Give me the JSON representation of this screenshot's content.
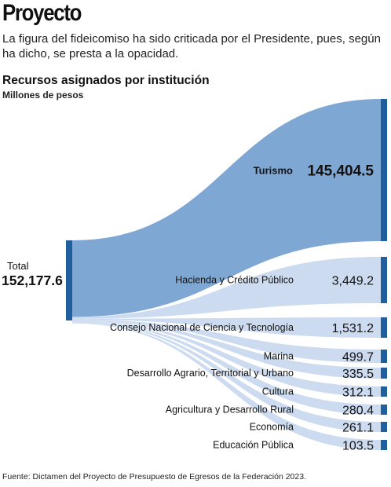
{
  "header": {
    "title": "Proyecto",
    "description": "La figura del fideicomiso ha sido criticada por el Presidente, pues, según ha dicho, se presta a la opacidad."
  },
  "footer": {
    "source": "Fuente: Dictamen del Proyecto de Presupuesto de Egresos de la Federación 2023."
  },
  "colors": {
    "node": "#1f5f9e",
    "flow_main": "#7fa7d4",
    "flow_light": "#c3d5ec",
    "text": "#111111"
  },
  "chart_data": {
    "type": "sankey",
    "title": "Recursos asignados por institución",
    "subtitle": "Millones de pesos",
    "source_node": {
      "label": "Total",
      "value_label": "152,177.6",
      "value": 152177.6
    },
    "targets": [
      {
        "name": "Turismo",
        "value": 145404.5,
        "value_label": "145,404.5"
      },
      {
        "name": "Hacienda y Crédito Público",
        "value": 3449.2,
        "value_label": "3,449.2"
      },
      {
        "name": "Consejo Nacional de Ciencia y Tecnología",
        "value": 1531.2,
        "value_label": "1,531.2"
      },
      {
        "name": "Marina",
        "value": 499.7,
        "value_label": "499.7"
      },
      {
        "name": "Desarrollo Agrario, Territorial y Urbano",
        "value": 335.5,
        "value_label": "335.5"
      },
      {
        "name": "Cultura",
        "value": 312.1,
        "value_label": "312.1"
      },
      {
        "name": "Agricultura y Desarrollo Rural",
        "value": 280.4,
        "value_label": "280.4"
      },
      {
        "name": "Economía",
        "value": 261.1,
        "value_label": "261.1"
      },
      {
        "name": "Educación Pública",
        "value": 103.5,
        "value_label": "103.5"
      }
    ]
  }
}
